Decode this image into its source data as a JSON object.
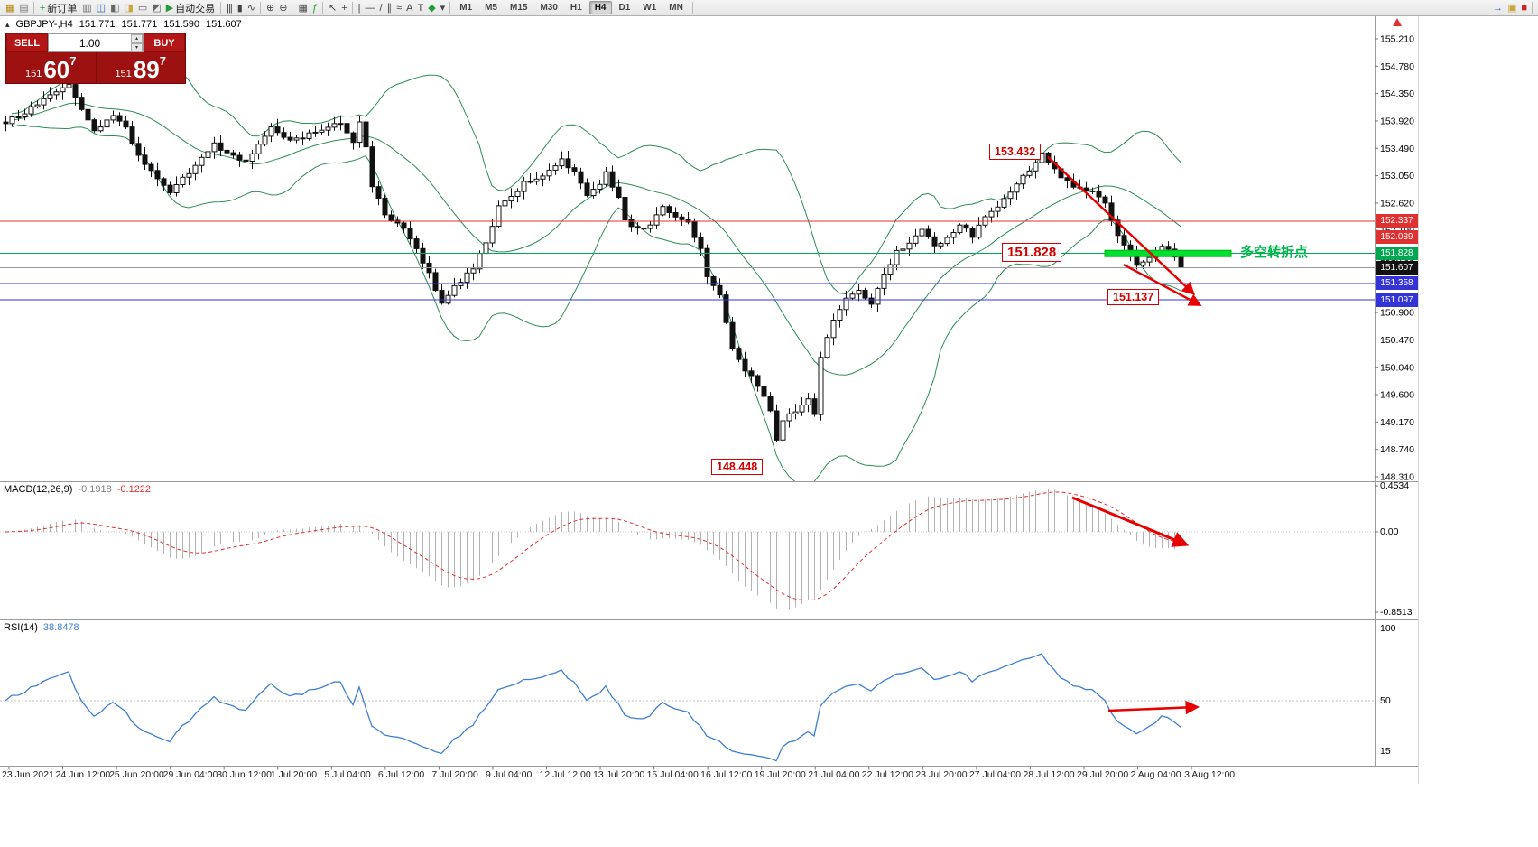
{
  "toolbar": {
    "groups": [
      {
        "name": "window",
        "items": [
          {
            "name": "chart-window-icon",
            "glyph": "▦",
            "color": "#b8860b"
          },
          {
            "name": "profiles-icon",
            "glyph": "▤",
            "color": "#7a7a7a"
          }
        ]
      },
      {
        "name": "main",
        "items": [
          {
            "name": "new-order-button",
            "glyph": "+",
            "color": "#1f9d3a",
            "label": "新订单"
          },
          {
            "name": "chart-cascade-icon",
            "glyph": "▥",
            "color": "#666666"
          },
          {
            "name": "market-watch-icon",
            "glyph": "◫",
            "color": "#2a62b8"
          },
          {
            "name": "data-window-icon",
            "glyph": "◧",
            "color": "#666666"
          },
          {
            "name": "navigator-icon",
            "glyph": "◨",
            "color": "#caa53d"
          },
          {
            "name": "terminal-icon",
            "glyph": "▭",
            "color": "#666666"
          },
          {
            "name": "strategy-tester-icon",
            "glyph": "◩",
            "color": "#666666"
          },
          {
            "name": "auto-trading-button",
            "glyph": "▶",
            "color": "#1f9d3a",
            "label": "自动交易"
          }
        ]
      },
      {
        "name": "chart-type",
        "items": [
          {
            "name": "bar-chart-icon",
            "glyph": "|||",
            "color": "#444444"
          },
          {
            "name": "candlestick-chart-icon",
            "glyph": "▮",
            "color": "#444444"
          },
          {
            "name": "line-chart-icon",
            "glyph": "∿",
            "color": "#444444"
          }
        ]
      },
      {
        "name": "zoom",
        "items": [
          {
            "name": "zoom-in-icon",
            "glyph": "⊕",
            "color": "#444444"
          },
          {
            "name": "zoom-out-icon",
            "glyph": "⊖",
            "color": "#444444"
          }
        ]
      },
      {
        "name": "windows",
        "items": [
          {
            "name": "tile-windows-icon",
            "glyph": "▦",
            "color": "#444444"
          },
          {
            "name": "indicators-icon",
            "glyph": "ƒ",
            "color": "#1f9d3a"
          }
        ]
      },
      {
        "name": "cursor",
        "items": [
          {
            "name": "cursor-icon",
            "glyph": "↖",
            "color": "#444444"
          },
          {
            "name": "crosshair-icon",
            "glyph": "+",
            "color": "#444444"
          }
        ]
      },
      {
        "name": "draw",
        "items": [
          {
            "name": "vertical-line-icon",
            "glyph": "|",
            "color": "#444444"
          },
          {
            "name": "horizontal-line-icon",
            "glyph": "—",
            "color": "#444444"
          },
          {
            "name": "trendline-icon",
            "glyph": "/",
            "color": "#444444"
          },
          {
            "name": "channel-icon",
            "glyph": "∥",
            "color": "#444444"
          },
          {
            "name": "fibonacci-icon",
            "glyph": "≈",
            "color": "#444444"
          },
          {
            "name": "text-icon",
            "glyph": "A",
            "color": "#444444"
          },
          {
            "name": "label-icon",
            "glyph": "T",
            "color": "#444444"
          },
          {
            "name": "shapes-icon",
            "glyph": "◆",
            "color": "#1f9d3a"
          },
          {
            "name": "dropdown-caret-icon",
            "glyph": "▾",
            "color": "#444444"
          }
        ]
      },
      {
        "name": "timeframes"
      },
      {
        "name": "spacer"
      },
      {
        "name": "right",
        "items": [
          {
            "name": "quick-nav-icon",
            "glyph": "→",
            "color": "#2a62b8"
          },
          {
            "name": "news-icon",
            "glyph": "▣",
            "color": "#caa53d"
          },
          {
            "name": "alert-icon",
            "glyph": "■",
            "color": "#cc2222"
          }
        ]
      }
    ],
    "timeframes": {
      "items": [
        "M1",
        "M5",
        "M15",
        "M30",
        "H1",
        "H4",
        "D1",
        "W1",
        "MN"
      ],
      "active": "H4"
    }
  },
  "chart_header": {
    "symbol_period": "GBPJPY-,H4",
    "open": "151.771",
    "high": "151.771",
    "low": "151.590",
    "close": "151.607"
  },
  "one_click": {
    "sell_label": "SELL",
    "buy_label": "BUY",
    "volume": "1.00",
    "sell_price_prefix": "151",
    "sell_price_big": "60",
    "sell_price_sup": "7",
    "buy_price_prefix": "151",
    "buy_price_big": "89",
    "buy_price_sup": "7"
  },
  "chart_data": {
    "type": "candlestick",
    "symbol": "GBPJPY-",
    "timeframe": "H4",
    "candle_count": 187,
    "peak_index": 164,
    "swing_high": 153.432,
    "swing_low": 148.448,
    "bid_price": 151.607,
    "last_candle": {
      "o": 151.771,
      "h": 151.771,
      "l": 151.59,
      "c": 151.607
    },
    "price_axis": {
      "ticks": [
        "155.210",
        "154.780",
        "154.350",
        "153.920",
        "153.490",
        "153.050",
        "152.620",
        "152.190",
        "151.760",
        "151.330",
        "150.900",
        "150.470",
        "150.040",
        "149.600",
        "149.170",
        "148.740",
        "148.310"
      ]
    },
    "time_ticks": [
      "23 Jun 2021",
      "24 Jun 12:00",
      "25 Jun 20:00",
      "29 Jun 04:00",
      "30 Jun 12:00",
      "1 Jul 20:00",
      "5 Jul 04:00",
      "6 Jul 12:00",
      "7 Jul 20:00",
      "9 Jul 04:00",
      "12 Jul 12:00",
      "13 Jul 20:00",
      "15 Jul 04:00",
      "16 Jul 12:00",
      "19 Jul 20:00",
      "21 Jul 04:00",
      "22 Jul 12:00",
      "23 Jul 20:00",
      "27 Jul 04:00",
      "28 Jul 12:00",
      "29 Jul 20:00",
      "2 Aug 04:00",
      "3 Aug 12:00"
    ],
    "price_path": [
      [
        0,
        153.9
      ],
      [
        3,
        154.05
      ],
      [
        7,
        154.3
      ],
      [
        10,
        154.5
      ],
      [
        12,
        154.1
      ],
      [
        14,
        153.75
      ],
      [
        17,
        154.0
      ],
      [
        19,
        153.8
      ],
      [
        21,
        153.35
      ],
      [
        24,
        153.0
      ],
      [
        26,
        152.8
      ],
      [
        29,
        153.1
      ],
      [
        33,
        153.55
      ],
      [
        36,
        153.35
      ],
      [
        38,
        153.3
      ],
      [
        42,
        153.8
      ],
      [
        45,
        153.6
      ],
      [
        47,
        153.65
      ],
      [
        50,
        153.8
      ],
      [
        53,
        153.9
      ],
      [
        55,
        153.6
      ],
      [
        56,
        153.9
      ],
      [
        57,
        153.5
      ],
      [
        58,
        152.9
      ],
      [
        60,
        152.45
      ],
      [
        63,
        152.2
      ],
      [
        65,
        151.9
      ],
      [
        67,
        151.5
      ],
      [
        69,
        151.05
      ],
      [
        71,
        151.3
      ],
      [
        74,
        151.6
      ],
      [
        76,
        152.0
      ],
      [
        78,
        152.55
      ],
      [
        80,
        152.7
      ],
      [
        82,
        152.95
      ],
      [
        84,
        153.0
      ],
      [
        86,
        153.15
      ],
      [
        88,
        153.3
      ],
      [
        90,
        153.1
      ],
      [
        92,
        152.75
      ],
      [
        94,
        152.9
      ],
      [
        95,
        153.1
      ],
      [
        97,
        152.7
      ],
      [
        98,
        152.35
      ],
      [
        100,
        152.2
      ],
      [
        102,
        152.3
      ],
      [
        104,
        152.55
      ],
      [
        106,
        152.4
      ],
      [
        108,
        152.3
      ],
      [
        110,
        151.9
      ],
      [
        111,
        151.45
      ],
      [
        113,
        151.15
      ],
      [
        115,
        150.35
      ],
      [
        117,
        150.0
      ],
      [
        119,
        149.75
      ],
      [
        121,
        149.35
      ],
      [
        122,
        148.9
      ],
      [
        123,
        149.2
      ],
      [
        125,
        149.35
      ],
      [
        127,
        149.55
      ],
      [
        128,
        149.3
      ],
      [
        129,
        150.2
      ],
      [
        131,
        150.8
      ],
      [
        133,
        151.1
      ],
      [
        135,
        151.25
      ],
      [
        137,
        151.0
      ],
      [
        139,
        151.5
      ],
      [
        141,
        151.85
      ],
      [
        143,
        152.0
      ],
      [
        145,
        152.2
      ],
      [
        147,
        151.95
      ],
      [
        149,
        152.05
      ],
      [
        151,
        152.3
      ],
      [
        153,
        152.1
      ],
      [
        155,
        152.4
      ],
      [
        157,
        152.55
      ],
      [
        159,
        152.8
      ],
      [
        161,
        153.05
      ],
      [
        163,
        153.25
      ],
      [
        164,
        153.4
      ],
      [
        166,
        153.15
      ],
      [
        168,
        152.95
      ],
      [
        170,
        152.85
      ],
      [
        172,
        152.8
      ],
      [
        174,
        152.6
      ],
      [
        176,
        152.1
      ],
      [
        178,
        151.85
      ],
      [
        179,
        151.65
      ],
      [
        181,
        151.75
      ],
      [
        183,
        151.95
      ],
      [
        185,
        151.8
      ],
      [
        186,
        151.61
      ]
    ],
    "bollinger": {
      "period": 20,
      "deviation": 2,
      "color": "#2e8b57"
    },
    "levels": [
      {
        "price": 152.337,
        "color": "#e03131"
      },
      {
        "price": 152.089,
        "color": "#e03131"
      },
      {
        "price": 151.828,
        "color": "#00a651"
      },
      {
        "price": 151.358,
        "color": "#3434d6"
      },
      {
        "price": 151.097,
        "color": "#3434d6"
      }
    ],
    "scale_tags": [
      {
        "text": "152.337",
        "bg": "#e03131",
        "price": 152.337
      },
      {
        "text": "152.089",
        "bg": "#e03131",
        "price": 152.089
      },
      {
        "text": "151.828",
        "bg": "#00a651",
        "price": 151.828
      },
      {
        "text": "151.607",
        "bg": "#111111",
        "price": 151.607
      },
      {
        "text": "151.358",
        "bg": "#3434d6",
        "price": 151.358
      },
      {
        "text": "151.097",
        "bg": "#3434d6",
        "price": 151.097
      }
    ],
    "indicators": {
      "macd": {
        "label": "MACD(12,26,9)",
        "value_main": "-0.1918",
        "value_signal": "-0.1222",
        "fast": 12,
        "slow": 26,
        "signal": 9,
        "scale_top": "0.4534",
        "scale_zero": "0.00",
        "scale_bottom": "-0.8513"
      },
      "rsi": {
        "label": "RSI(14)",
        "value": "38.8478",
        "period": 14,
        "scale_top": "100",
        "scale_mid": "50",
        "scale_bottom": "15"
      }
    },
    "annotations": {
      "swing_high_label": "153.432",
      "pivot_label": "151.828",
      "target_label": "151.137",
      "swing_low_label": "148.448",
      "pivot_text": "多空转折点",
      "arrows_color": "#e80000",
      "arrows": [
        {
          "from": [
            165,
            153.35
          ],
          "to": [
            188,
            151.2
          ]
        },
        {
          "from": [
            177,
            151.65
          ],
          "to": [
            189,
            151.02
          ]
        }
      ],
      "pivot_segment": {
        "t1": 174,
        "t2": 194,
        "price": 151.828
      },
      "macd_arrow": {
        "from": [
          1188,
          551
        ],
        "to": [
          1314,
          603
        ]
      },
      "rsi_arrow": {
        "from": [
          1228,
          787
        ],
        "to": [
          1326,
          783
        ]
      }
    }
  }
}
